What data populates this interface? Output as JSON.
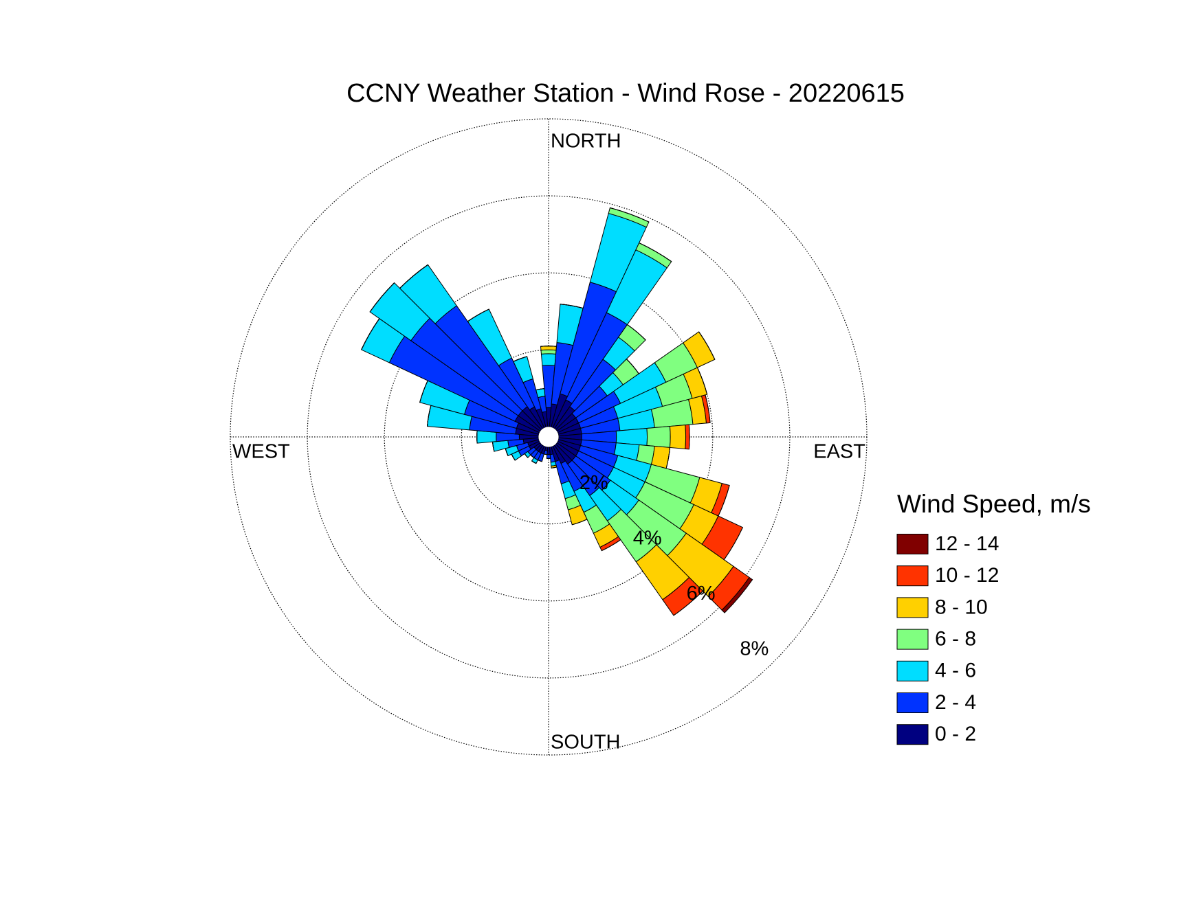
{
  "chart_data": {
    "type": "windrose",
    "title": "CCNY Weather Station - Wind Rose - 20220615",
    "directions": [
      "NORTH",
      "EAST",
      "SOUTH",
      "WEST"
    ],
    "x": [
      0,
      10,
      20,
      30,
      40,
      50,
      60,
      70,
      80,
      90,
      100,
      110,
      120,
      130,
      140,
      150,
      160,
      170,
      180,
      190,
      200,
      210,
      220,
      230,
      240,
      250,
      260,
      270,
      280,
      290,
      300,
      310,
      320,
      330,
      340,
      350
    ],
    "rlim": [
      0,
      8
    ],
    "rticks": [
      {
        "value": 2,
        "label": "2%"
      },
      {
        "value": 4,
        "label": "4%"
      },
      {
        "value": 6,
        "label": "6%"
      },
      {
        "value": 8,
        "label": "8%"
      }
    ],
    "legend_title": "Wind Speed, m/s",
    "series": [
      {
        "name": "0 - 2",
        "color": "#000080",
        "values": [
          0.5,
          0.6,
          0.9,
          0.8,
          0.7,
          0.6,
          0.6,
          0.6,
          0.6,
          0.6,
          0.6,
          0.6,
          0.6,
          0.6,
          0.6,
          0.5,
          0.4,
          0.2,
          0.2,
          0.1,
          0.2,
          0.2,
          0.2,
          0.2,
          0.3,
          0.3,
          0.4,
          0.5,
          0.6,
          0.6,
          0.7,
          0.7,
          0.7,
          0.6,
          0.5,
          0.4
        ]
      },
      {
        "name": "2 - 4",
        "color": "#0033ff",
        "values": [
          1.1,
          1.6,
          3.0,
          2.5,
          1.5,
          1.0,
          1.2,
          1.0,
          1.0,
          0.9,
          0.9,
          1.0,
          1.0,
          1.1,
          1.0,
          0.8,
          0.6,
          0.2,
          0.1,
          0.1,
          0.2,
          0.2,
          0.2,
          0.2,
          0.3,
          0.3,
          0.4,
          0.6,
          1.2,
          1.4,
          3.6,
          3.4,
          3.2,
          1.4,
          0.8,
          0.4
        ]
      },
      {
        "name": "4 - 6",
        "color": "#00ddff",
        "values": [
          0.3,
          1.0,
          1.85,
          1.8,
          0.7,
          0.5,
          1.3,
          1.2,
          0.9,
          0.8,
          0.6,
          0.9,
          0.9,
          0.9,
          0.8,
          0.6,
          0.4,
          0.1,
          0,
          0,
          0,
          0.1,
          0,
          0.1,
          0.2,
          0.3,
          0.4,
          0.5,
          1.1,
          1.2,
          0.8,
          1.3,
          1.3,
          1.4,
          0.6,
          0.2
        ]
      },
      {
        "name": "6 - 8",
        "color": "#80ff80",
        "values": [
          0.1,
          0,
          0.15,
          0.2,
          0.4,
          0.5,
          0.9,
          0.8,
          1.0,
          0.6,
          0.4,
          1.3,
          1.4,
          1.5,
          1.3,
          0.6,
          0.3,
          0,
          0,
          0,
          0,
          0,
          0,
          0,
          0,
          0,
          0,
          0,
          0,
          0,
          0,
          0,
          0,
          0,
          0,
          0
        ]
      },
      {
        "name": "8 - 10",
        "color": "#ffd000",
        "values": [
          0.1,
          0,
          0,
          0,
          0,
          0,
          0.5,
          0.4,
          0.35,
          0.4,
          0.4,
          0.6,
          0.7,
          1.5,
          1.2,
          0.4,
          0.4,
          0.05,
          0,
          0,
          0,
          0,
          0,
          0,
          0,
          0,
          0,
          0,
          0,
          0,
          0,
          0,
          0,
          0,
          0,
          0
        ]
      },
      {
        "name": "10 - 12",
        "color": "#ff3300",
        "values": [
          0,
          0,
          0,
          0,
          0,
          0,
          0,
          0,
          0.1,
          0.1,
          0,
          0.2,
          0.7,
          0.5,
          0.5,
          0.1,
          0,
          0,
          0,
          0,
          0,
          0,
          0,
          0,
          0,
          0,
          0,
          0,
          0,
          0,
          0,
          0,
          0,
          0,
          0,
          0
        ]
      },
      {
        "name": "12 - 14",
        "color": "#800000",
        "values": [
          0,
          0,
          0,
          0,
          0,
          0,
          0,
          0,
          0,
          0,
          0,
          0,
          0,
          0.1,
          0,
          0,
          0,
          0,
          0,
          0,
          0,
          0,
          0,
          0,
          0,
          0,
          0,
          0,
          0,
          0,
          0,
          0,
          0,
          0,
          0,
          0
        ]
      }
    ]
  }
}
